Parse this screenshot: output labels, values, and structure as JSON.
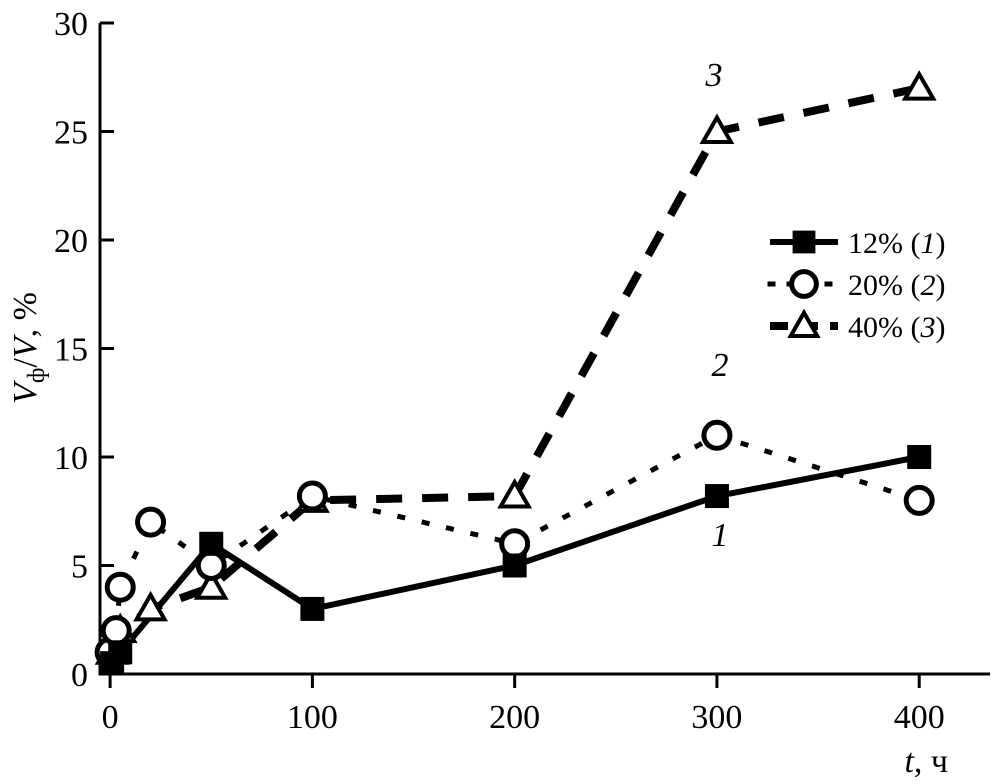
{
  "chart_data": {
    "type": "line",
    "title": "",
    "xlabel": {
      "var": "t",
      "unit": ", ч"
    },
    "ylabel": {
      "v1": "V",
      "sub": "ф",
      "mid": "/",
      "v2": "V",
      "unit": ", %"
    },
    "xlim": [
      -5,
      435
    ],
    "ylim": [
      0,
      30
    ],
    "xticks": [
      0,
      100,
      200,
      300,
      400
    ],
    "yticks": [
      0,
      5,
      10,
      15,
      20,
      25,
      30
    ],
    "grid": false,
    "legend_position": "right",
    "series": [
      {
        "name": "12% (1)",
        "name_parts": {
          "pct": "12% (",
          "num": "1",
          "close": ")"
        },
        "curve_label": "1",
        "marker": "filled-square",
        "line_style": "solid",
        "color": "#000000",
        "x": [
          1,
          5,
          50,
          100,
          200,
          300,
          400
        ],
        "y": [
          0.5,
          1,
          6,
          3,
          5,
          8.2,
          10
        ]
      },
      {
        "name": "20% (2)",
        "name_parts": {
          "pct": "20% (",
          "num": "2",
          "close": ")"
        },
        "curve_label": "2",
        "marker": "open-circle",
        "line_style": "dotted",
        "color": "#000000",
        "x": [
          0,
          3,
          5,
          20,
          50,
          100,
          200,
          300,
          400
        ],
        "y": [
          1,
          2,
          4,
          7,
          5,
          8.2,
          6,
          11,
          8
        ]
      },
      {
        "name": "40% (3)",
        "name_parts": {
          "pct": "40% (",
          "num": "3",
          "close": ")"
        },
        "curve_label": "3",
        "marker": "open-triangle",
        "line_style": "dashed",
        "color": "#000000",
        "x": [
          1,
          5,
          20,
          50,
          100,
          200,
          300,
          400
        ],
        "y": [
          1,
          2,
          3,
          4,
          8,
          8.2,
          25,
          27
        ]
      }
    ]
  }
}
